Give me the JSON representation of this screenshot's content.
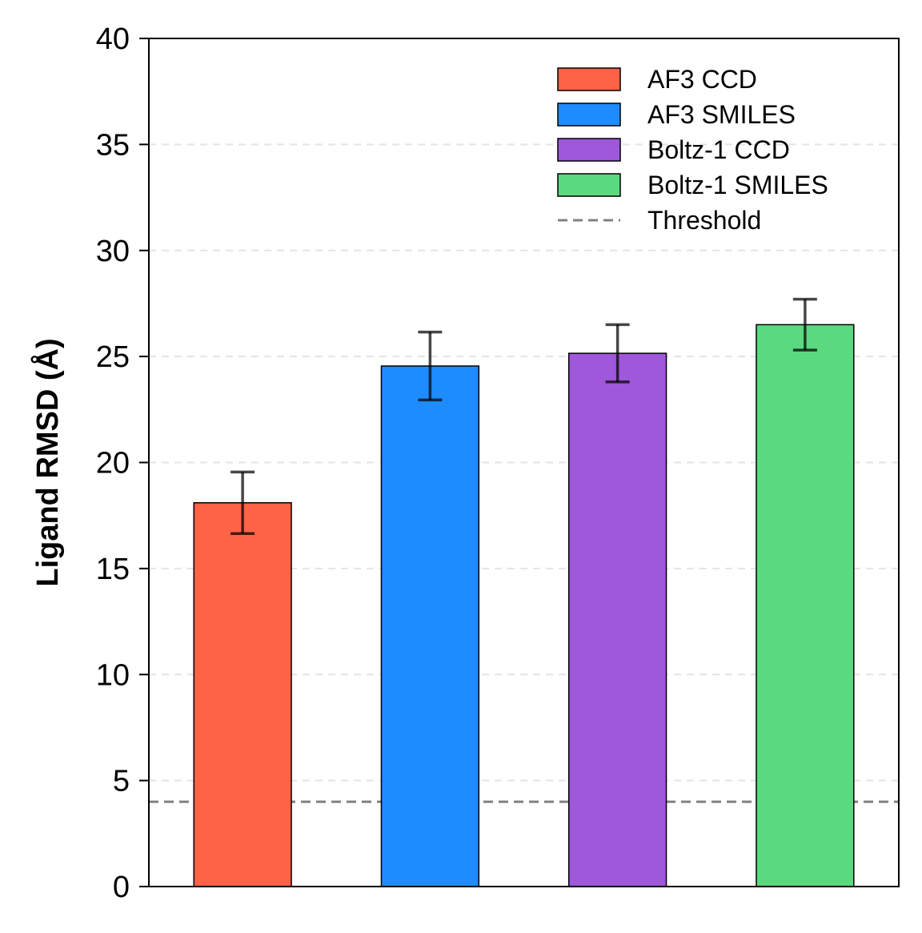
{
  "chart_data": {
    "type": "bar",
    "ylabel": "Ligand RMSD (Å)",
    "xlabel": "",
    "ylim": [
      0,
      40
    ],
    "yticks": [
      0,
      5,
      10,
      15,
      20,
      25,
      30,
      35,
      40
    ],
    "ytick_labels": [
      "0",
      "5",
      "10",
      "15",
      "20",
      "25",
      "30",
      "35",
      "40"
    ],
    "grid": "horizontal dashed",
    "legend_position": "top-right",
    "bars": [
      {
        "name": "AF3 CCD",
        "value": 18.1,
        "error": 1.45,
        "color": "#FF6347"
      },
      {
        "name": "AF3 SMILES",
        "value": 24.55,
        "error": 1.6,
        "color": "#1E8CFF"
      },
      {
        "name": "Boltz-1 CCD",
        "value": 25.15,
        "error": 1.35,
        "color": "#9F57DB"
      },
      {
        "name": "Boltz-1 SMILES",
        "value": 26.5,
        "error": 1.2,
        "color": "#5BD97F"
      }
    ],
    "threshold": {
      "name": "Threshold",
      "value": 4,
      "color": "#808080"
    }
  }
}
